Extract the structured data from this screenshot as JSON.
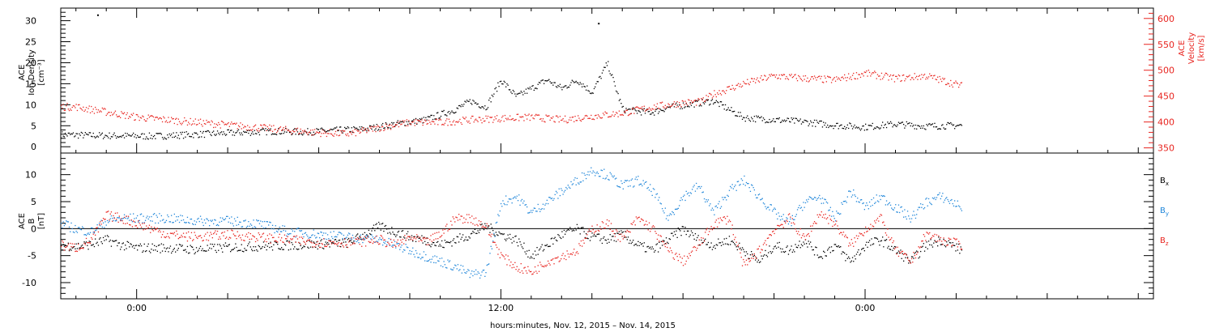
{
  "chart_data": [
    {
      "type": "scatter",
      "panel": "top",
      "x_unit": "hours since 00:00 Nov. 13, 2015",
      "xlim": [
        -2.5,
        33.5
      ],
      "left_axis": {
        "ylabel_lines": [
          "ACE",
          "Ion Density",
          "[cm⁻³]"
        ],
        "ylim": [
          -1.5,
          33
        ],
        "ticks": [
          0,
          5,
          10,
          15,
          20,
          25,
          30
        ]
      },
      "right_axis": {
        "ylabel_lines": [
          "ACE",
          "Velocity",
          "[km/s]"
        ],
        "ylim": [
          340,
          620
        ],
        "ticks": [
          350,
          400,
          450,
          500,
          550,
          600
        ],
        "color": "#e8241f"
      },
      "series": [
        {
          "name": "",
          "axis": "left",
          "color": "#000000",
          "x": [
            -2.5,
            -1.5,
            -0.5,
            0.5,
            1.5,
            2.5,
            3.5,
            4.5,
            5.5,
            6.5,
            7.5,
            8.5,
            9.5,
            10.5,
            11,
            11.5,
            12,
            12.5,
            13,
            13.5,
            14,
            14.5,
            15,
            15.5,
            16,
            16.5,
            17,
            17.5,
            18,
            19,
            20,
            21,
            22,
            23,
            24,
            25,
            26,
            27.2
          ],
          "y": [
            3,
            2.8,
            2.7,
            2.6,
            2.9,
            3.2,
            3.5,
            3.8,
            3.6,
            4,
            4.3,
            5.5,
            6.5,
            9,
            11,
            9.5,
            16,
            12,
            14,
            16,
            14,
            16,
            13,
            20,
            9,
            8.5,
            8.3,
            9.5,
            10,
            11,
            7,
            6.5,
            6,
            5.2,
            4.8,
            5.5,
            5,
            5.2
          ]
        },
        {
          "name": "",
          "axis": "right",
          "color": "#e8241f",
          "x": [
            -2.5,
            -2,
            -1.5,
            -1,
            -0.5,
            0,
            1,
            2,
            3,
            4,
            5,
            6,
            7,
            8,
            9,
            10,
            11,
            12,
            13,
            14,
            15,
            16,
            17,
            18,
            18.6,
            19,
            20,
            21,
            22,
            23,
            24,
            25,
            26,
            27.2
          ],
          "y": [
            430,
            430,
            425,
            420,
            415,
            410,
            405,
            400,
            395,
            390,
            385,
            380,
            378,
            390,
            400,
            400,
            405,
            408,
            410,
            405,
            412,
            418,
            430,
            438,
            440,
            455,
            475,
            490,
            485,
            482,
            495,
            485,
            490,
            470
          ]
        }
      ],
      "outliers": [
        {
          "series": 0,
          "x": -1.3,
          "y": 31.5
        },
        {
          "series": 0,
          "x": 15.2,
          "y": 29.5
        }
      ]
    },
    {
      "type": "scatter",
      "panel": "bottom",
      "x_unit": "hours since 00:00 Nov. 13, 2015",
      "xlim": [
        -2.5,
        33.5
      ],
      "ylabel_lines": [
        "ACE",
        "B",
        "[nT]"
      ],
      "ylim": [
        -13,
        14
      ],
      "ticks": [
        -10,
        -5,
        0,
        5,
        10
      ],
      "zero_line": true,
      "xticklabels": [
        {
          "x": 0,
          "label": "0:00"
        },
        {
          "x": 12,
          "label": "12:00"
        },
        {
          "x": 24,
          "label": "0:00"
        }
      ],
      "xlabel": "hours:minutes, Nov. 12, 2015 – Nov. 14, 2015",
      "series": [
        {
          "name": "B",
          "sub": "x",
          "color": "#000000",
          "x": [
            -2.5,
            -2,
            -1.5,
            -1,
            -0.5,
            0,
            1,
            2,
            3,
            4,
            5,
            6,
            7,
            8,
            9,
            9.5,
            10,
            10.5,
            11,
            11.5,
            12,
            12.5,
            13,
            13.5,
            14,
            14.5,
            15,
            15.5,
            16,
            16.5,
            17,
            17.5,
            18,
            18.5,
            19,
            19.5,
            20,
            20.5,
            21,
            21.5,
            22,
            22.5,
            23,
            23.5,
            24,
            24.5,
            25,
            25.5,
            26,
            26.5,
            27.2
          ],
          "y": [
            -3,
            -3.2,
            -2.8,
            -2,
            -3,
            -3.5,
            -3.5,
            -3.8,
            -3.4,
            -3.2,
            -3,
            -2.8,
            -2.5,
            0.5,
            -1.5,
            -2,
            -3,
            -2,
            -1,
            0.5,
            -1,
            -2,
            -5,
            -3,
            -1,
            0,
            -1.5,
            -2,
            -1,
            -3,
            -4,
            -2,
            0,
            -2,
            -3,
            -2,
            -4,
            -6,
            -3,
            -4,
            -2,
            -5,
            -3,
            -6,
            -3,
            -2,
            -4,
            -6,
            -3,
            -2,
            -4
          ]
        },
        {
          "name": "B",
          "sub": "y",
          "color": "#1f86d9",
          "x": [
            -2.5,
            -2,
            -1.5,
            -1,
            -0.5,
            0,
            1,
            2,
            3,
            4,
            5,
            6,
            7,
            8,
            8.5,
            9,
            9.5,
            10,
            10.5,
            11,
            11.5,
            12,
            12.5,
            13,
            13.5,
            14,
            14.5,
            15,
            15.5,
            16,
            16.5,
            17,
            17.5,
            18,
            18.5,
            19,
            19.5,
            20,
            20.5,
            21,
            21.5,
            22,
            22.5,
            23,
            23.5,
            24,
            24.5,
            25,
            25.5,
            26,
            26.5,
            27.2
          ],
          "y": [
            1,
            0,
            -0.5,
            1.5,
            2,
            2,
            2,
            1.5,
            1.5,
            1,
            -0.5,
            -1,
            -1.5,
            -2,
            -3,
            -4,
            -5,
            -6,
            -7,
            -8.5,
            -8,
            5,
            6,
            3,
            5,
            7,
            9,
            11,
            10,
            8,
            9,
            7,
            2,
            6,
            8,
            3,
            7,
            9,
            6,
            3,
            1,
            5,
            6,
            2,
            7,
            4,
            6,
            4,
            2,
            5,
            6,
            4
          ]
        },
        {
          "name": "B",
          "sub": "z",
          "color": "#e8241f",
          "x": [
            -2.5,
            -2,
            -1.5,
            -1,
            -0.5,
            0,
            1,
            2,
            3,
            4,
            5,
            6,
            7,
            8,
            8.5,
            9,
            9.5,
            10,
            10.5,
            11,
            11.5,
            12,
            12.5,
            13,
            13.5,
            14,
            14.5,
            15,
            15.5,
            16,
            16.5,
            17,
            17.5,
            18,
            18.5,
            19,
            19.5,
            20,
            20.5,
            21,
            21.5,
            22,
            22.5,
            23,
            23.5,
            24,
            24.5,
            25,
            25.5,
            26,
            26.5,
            27.2
          ],
          "y": [
            -3,
            -3.5,
            -2,
            2.5,
            2,
            1,
            -1,
            -1.5,
            -1,
            -1.5,
            -2,
            -2.5,
            -2.5,
            -2,
            -3,
            -1.5,
            -2.5,
            -1,
            2,
            2,
            0.5,
            -5,
            -7,
            -8,
            -6,
            -5,
            -4,
            0,
            1,
            -2,
            2,
            0,
            -4,
            -6,
            -3,
            1,
            2,
            -7,
            -4,
            0,
            2,
            -2,
            3,
            1,
            -3,
            0,
            2,
            -4,
            -6,
            -1,
            -2,
            -3
          ]
        }
      ]
    }
  ]
}
